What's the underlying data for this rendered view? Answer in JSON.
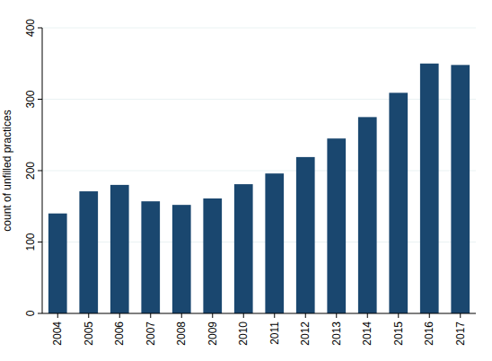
{
  "chart_data": {
    "type": "bar",
    "y_label": "count of unfilled practices",
    "categories": [
      "2004",
      "2005",
      "2006",
      "2007",
      "2008",
      "2009",
      "2010",
      "2011",
      "2012",
      "2013",
      "2014",
      "2015",
      "2016",
      "2017"
    ],
    "values": [
      140,
      171,
      180,
      157,
      152,
      161,
      181,
      196,
      219,
      245,
      275,
      309,
      350,
      348
    ],
    "color": "#1a476f",
    "ylim": [
      0,
      400
    ],
    "yticks": [
      0,
      100,
      200,
      300,
      400
    ],
    "grid": true
  }
}
